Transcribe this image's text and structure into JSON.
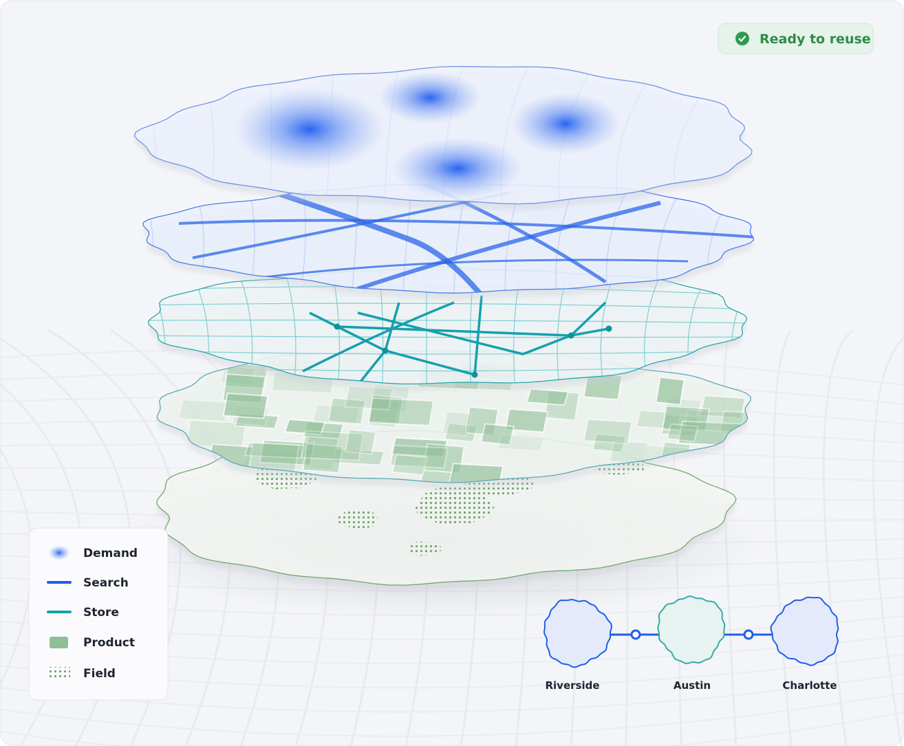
{
  "badge": {
    "text": "Ready to reuse"
  },
  "legend": {
    "items": [
      "Demand",
      "Search",
      "Store",
      "Product",
      "Field"
    ]
  },
  "cities": [
    "Riverside",
    "Austin",
    "Charlotte"
  ]
}
